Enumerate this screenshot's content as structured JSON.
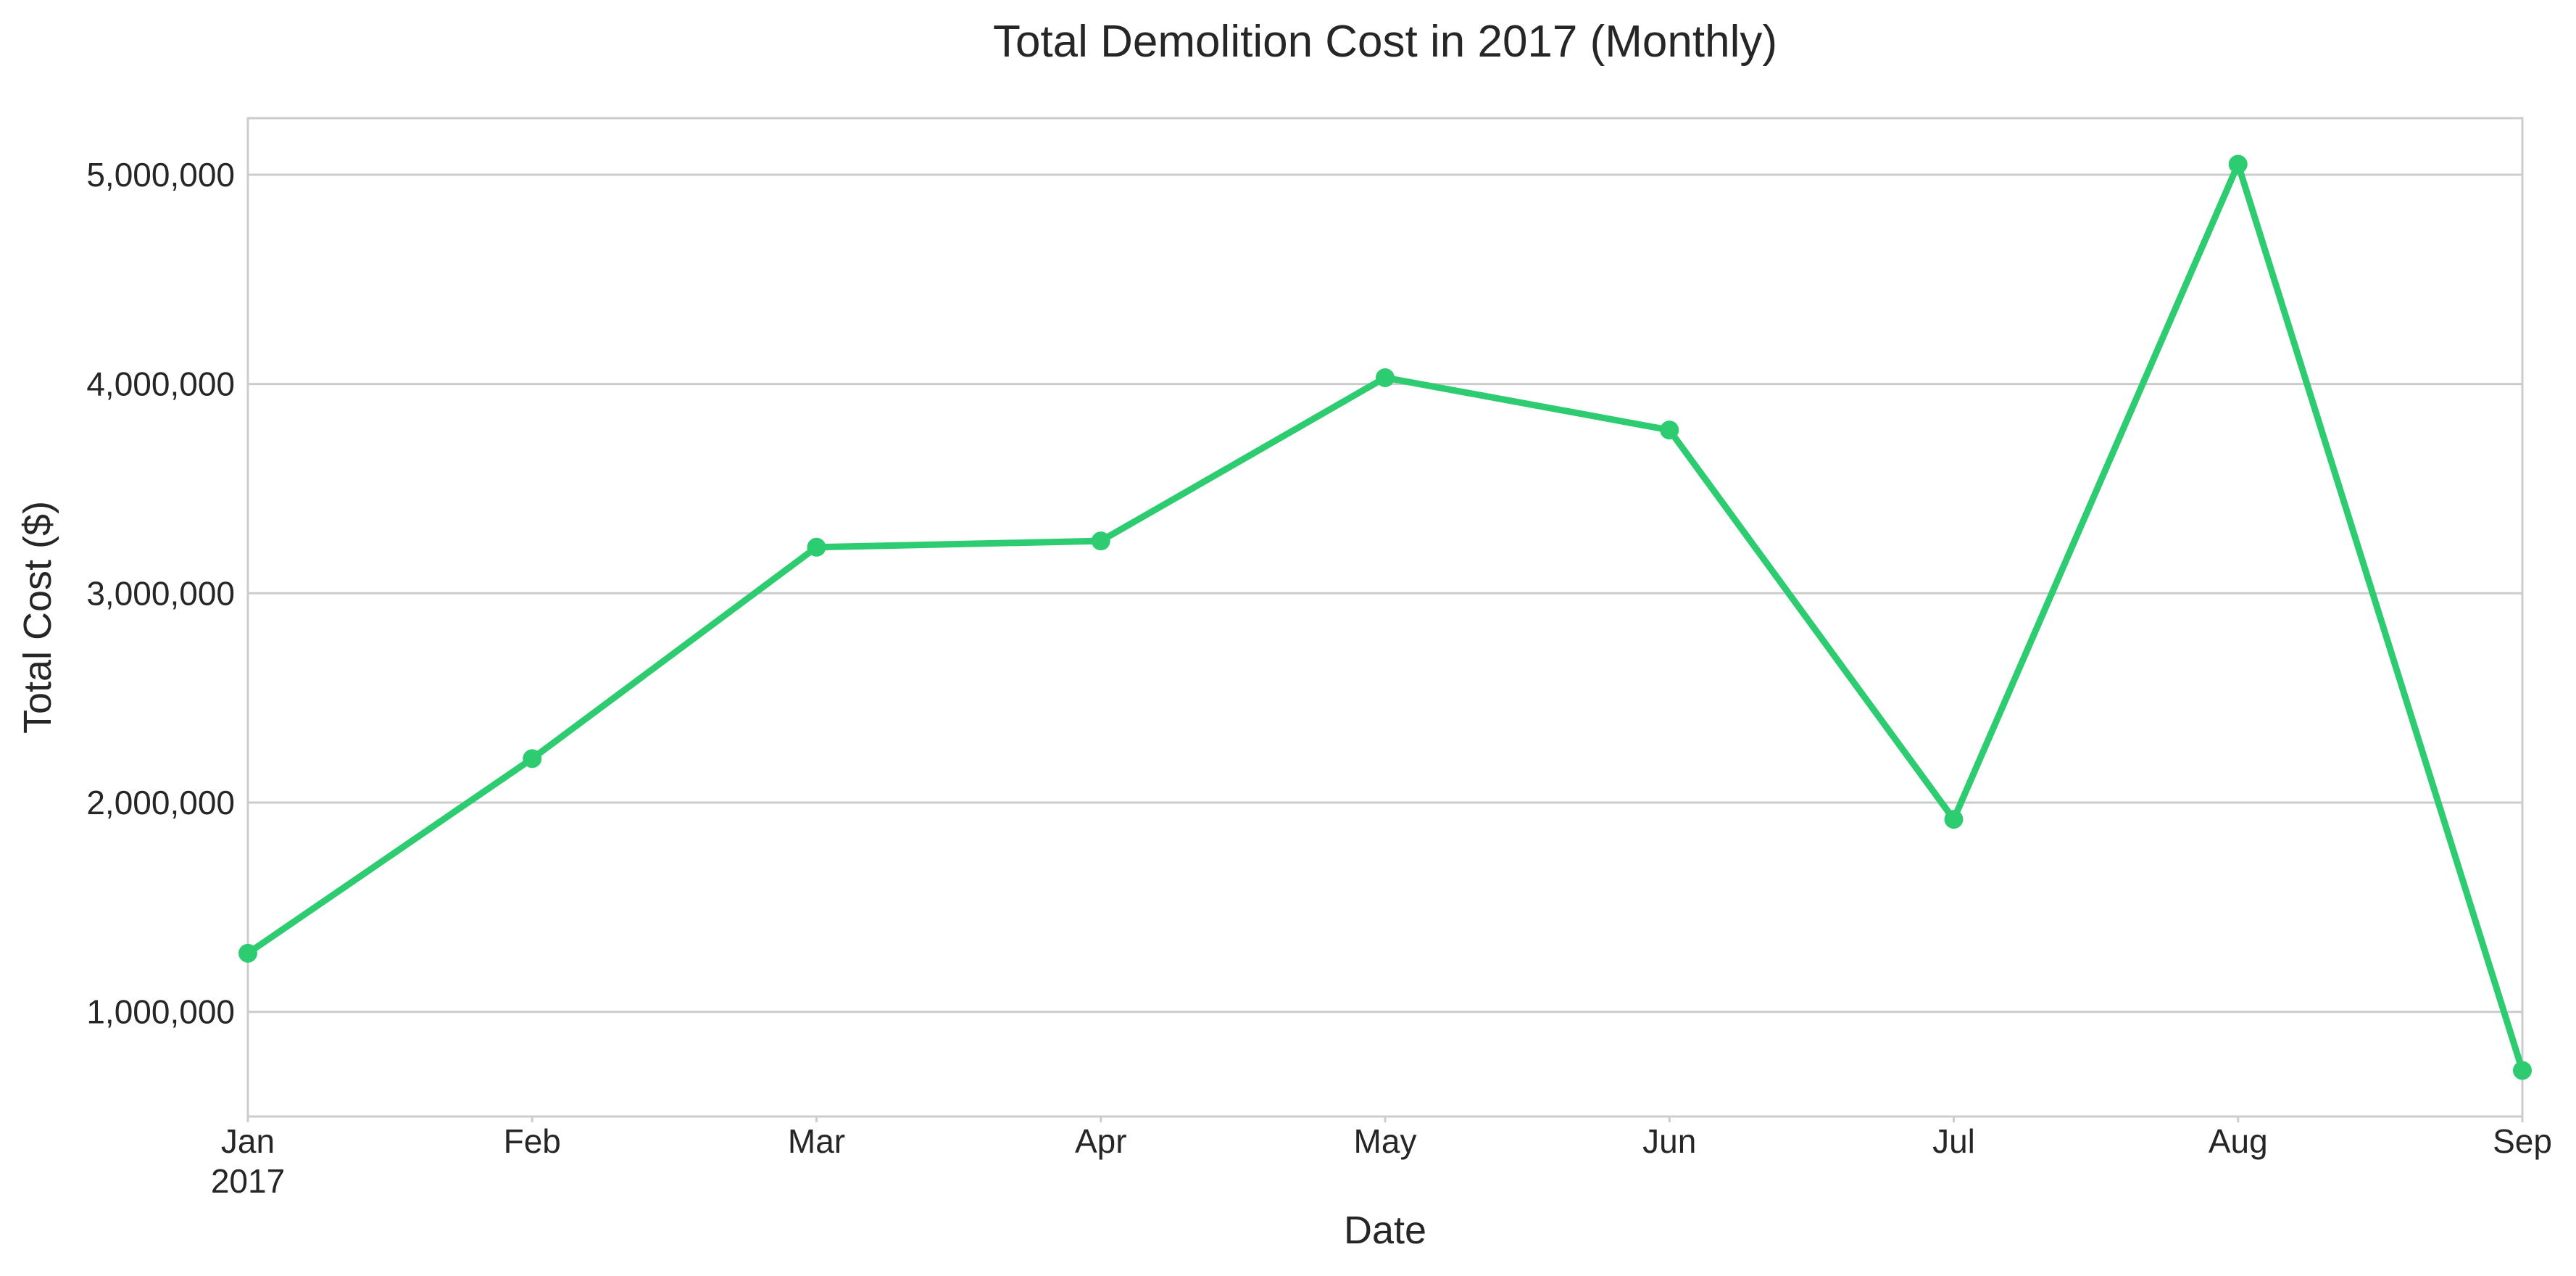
{
  "chart_data": {
    "type": "line",
    "title": "Total Demolition Cost in 2017 (Monthly)",
    "xlabel": "Date",
    "ylabel": "Total Cost ($)",
    "x": [
      "2017-01",
      "2017-02",
      "2017-03",
      "2017-04",
      "2017-05",
      "2017-06",
      "2017-07",
      "2017-08",
      "2017-09"
    ],
    "x_tick_labels": [
      "Jan",
      "Feb",
      "Mar",
      "Apr",
      "May",
      "Jun",
      "Jul",
      "Aug",
      "Sep"
    ],
    "x_tick_year_label": "2017",
    "series": [
      {
        "values": [
          1280000,
          2210000,
          3220000,
          3250000,
          4030000,
          3780000,
          1920000,
          5050000,
          720000
        ],
        "color": "#2ecc71"
      }
    ],
    "y_ticks": [
      1000000,
      2000000,
      3000000,
      4000000,
      5000000
    ],
    "y_tick_labels": [
      "1,000,000",
      "2,000,000",
      "3,000,000",
      "4,000,000",
      "5,000,000"
    ],
    "ylim": [
      500000,
      5270000
    ],
    "grid": "horizontal",
    "legend": "none"
  }
}
